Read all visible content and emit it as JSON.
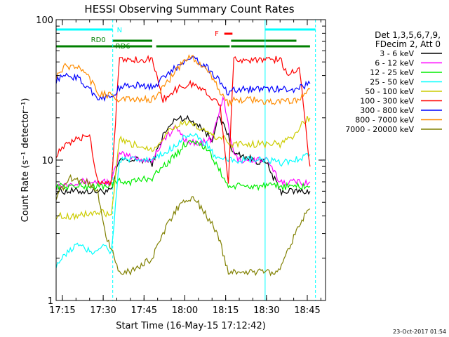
{
  "chart_data": {
    "type": "line",
    "title": "HESSI Observing Summary Count Rates",
    "xlabel": "Start Time (16-May-15 17:12:42)",
    "ylabel": "Count Rate (s⁻¹ detector⁻¹)",
    "yscale": "log",
    "ylim": [
      1,
      100
    ],
    "y_ticks": [
      {
        "value": 1,
        "label": "1"
      },
      {
        "value": 10,
        "label": "10"
      },
      {
        "value": 100,
        "label": "100"
      }
    ],
    "x_axis": {
      "start": "17:12:42",
      "x_ticks": [
        "17:15",
        "17:30",
        "17:45",
        "18:00",
        "18:15",
        "18:30",
        "18:45"
      ]
    },
    "legend": {
      "header": [
        "Det 1,3,5,6,7,9,",
        "FDecim 2, Att 0"
      ],
      "placement": "right",
      "entries": [
        {
          "label": "3 - 6 keV",
          "color": "#000000"
        },
        {
          "label": "6 - 12 keV",
          "color": "#ff00ff"
        },
        {
          "label": "12 - 25 keV",
          "color": "#00ee00"
        },
        {
          "label": "25 - 50 keV",
          "color": "#00ffff"
        },
        {
          "label": "50 - 100 keV",
          "color": "#cccc00"
        },
        {
          "label": "100 - 300 keV",
          "color": "#ff0000"
        },
        {
          "label": "300 - 800 keV",
          "color": "#0000ff"
        },
        {
          "label": "800 - 7000 keV",
          "color": "#ff8c00"
        },
        {
          "label": "7000 - 20000 keV",
          "color": "#808000"
        }
      ]
    },
    "flags": [
      {
        "label": "N",
        "color": "#00ffff"
      },
      {
        "label": "RD0",
        "color": "#008000"
      },
      {
        "label": "RD6",
        "color": "#008000"
      },
      {
        "label": "F",
        "color": "#ff0000"
      }
    ],
    "flag_intervals": {
      "N": [
        [
          "17:12:42",
          "17:33:30"
        ],
        [
          "18:29:30",
          "18:48:00"
        ]
      ],
      "RD0": [
        [
          "17:12:42",
          "17:48:00"
        ],
        [
          "17:49:30",
          "18:16:30"
        ],
        [
          "18:17:00",
          "18:46:00"
        ]
      ],
      "RD6": [
        [
          "17:33:30",
          "17:48:00"
        ],
        [
          "18:17:00",
          "18:41:00"
        ]
      ],
      "F": [
        [
          "18:14:30",
          "18:17:30"
        ]
      ]
    },
    "series": [
      {
        "name": "3 - 6 keV",
        "color": "#000000",
        "x": [
          "17:12:42",
          "17:20:00",
          "17:26:00",
          "17:33:00",
          "17:36:00",
          "17:45:00",
          "17:48:00",
          "17:52:00",
          "17:57:00",
          "18:00:00",
          "18:05:00",
          "18:10:00",
          "18:12:00",
          "18:15:00",
          "18:18:00",
          "18:20:00",
          "18:25:00",
          "18:30:00",
          "18:35:00",
          "18:40:00",
          "18:46:00"
        ],
        "y": [
          6,
          6,
          6,
          6,
          10,
          10,
          9.5,
          15,
          20,
          20,
          18,
          14,
          20,
          17,
          11,
          11,
          10,
          9.5,
          6,
          6,
          6
        ]
      },
      {
        "name": "6 - 12 keV",
        "color": "#ff00ff",
        "x": [
          "17:12:42",
          "17:20:00",
          "17:26:00",
          "17:33:00",
          "17:36:00",
          "17:45:00",
          "17:48:00",
          "17:52:00",
          "17:57:00",
          "18:00:00",
          "18:05:00",
          "18:10:00",
          "18:12:00",
          "18:14:00",
          "18:18:00",
          "18:20:00",
          "18:25:00",
          "18:30:00",
          "18:35:00",
          "18:40:00",
          "18:46:00"
        ],
        "y": [
          6.5,
          7,
          7,
          7,
          11,
          10,
          10,
          14,
          17,
          14,
          13,
          14,
          20,
          28,
          11,
          10,
          10,
          10,
          7,
          7,
          7
        ]
      },
      {
        "name": "12 - 25 keV",
        "color": "#00ee00",
        "x": [
          "17:12:42",
          "17:20:00",
          "17:26:00",
          "17:30:00",
          "17:36:00",
          "17:40:00",
          "17:48:00",
          "17:52:00",
          "17:57:00",
          "18:00:00",
          "18:03:00",
          "18:08:00",
          "18:12:00",
          "18:16:00",
          "18:20:00",
          "18:25:00",
          "18:30:00",
          "18:35:00",
          "18:40:00",
          "18:46:00"
        ],
        "y": [
          6.5,
          6.5,
          6.5,
          6.5,
          7,
          7,
          7.5,
          9,
          11,
          13,
          14,
          12,
          9,
          6.5,
          6.5,
          6.5,
          6.5,
          6.5,
          6.5,
          6.5
        ]
      },
      {
        "name": "25 - 50 keV",
        "color": "#00ffff",
        "x": [
          "17:12:42",
          "17:20:00",
          "17:26:00",
          "17:30:00",
          "17:33:00",
          "17:36:00",
          "17:40:00",
          "17:48:00",
          "17:52:00",
          "17:57:00",
          "18:00:00",
          "18:03:00",
          "18:08:00",
          "18:12:00",
          "18:16:00",
          "18:20:00",
          "18:25:00",
          "18:30:00",
          "18:35:00",
          "18:40:00",
          "18:46:00"
        ],
        "y": [
          1.8,
          2.5,
          2.2,
          2.5,
          2.2,
          10,
          10,
          10,
          11,
          13,
          15,
          15,
          13,
          10,
          10,
          10,
          10,
          10,
          9.5,
          10,
          11
        ]
      },
      {
        "name": "50 - 100 keV",
        "color": "#cccc00",
        "x": [
          "17:12:42",
          "17:20:00",
          "17:26:00",
          "17:30:00",
          "17:33:00",
          "17:36:00",
          "17:40:00",
          "17:44:00",
          "17:48:00",
          "17:50:00",
          "17:55:00",
          "18:00:00",
          "18:05:00",
          "18:10:00",
          "18:15:00",
          "18:17:00",
          "18:20:00",
          "18:25:00",
          "18:30:00",
          "18:35:00",
          "18:40:00",
          "18:44:00",
          "18:46:00"
        ],
        "y": [
          4,
          4,
          4.2,
          4.2,
          4,
          14,
          13,
          12.5,
          12,
          13,
          17,
          18.5,
          17,
          15,
          14,
          13,
          13,
          13,
          13,
          13,
          15,
          19,
          20
        ]
      },
      {
        "name": "100 - 300 keV",
        "color": "#ff0000",
        "x": [
          "17:12:42",
          "17:16:00",
          "17:20:00",
          "17:25:00",
          "17:28:00",
          "17:33:00",
          "17:36:00",
          "17:40:00",
          "17:45:00",
          "17:48:00",
          "17:52:00",
          "17:58:00",
          "18:03:00",
          "18:08:00",
          "18:13:00",
          "18:16:00",
          "18:18:00",
          "18:24:00",
          "18:30:00",
          "18:35:00",
          "18:38:00",
          "18:42:00",
          "18:46:00"
        ],
        "y": [
          11,
          12.5,
          14,
          15,
          7,
          7,
          52,
          52,
          52,
          52,
          27,
          33,
          35,
          30,
          25,
          7,
          52,
          52,
          52,
          52,
          40,
          47,
          9
        ]
      },
      {
        "name": "300 - 800 keV",
        "color": "#0000ff",
        "x": [
          "17:12:42",
          "17:16:00",
          "17:20:00",
          "17:25:00",
          "17:28:00",
          "17:33:00",
          "17:36:00",
          "17:40:00",
          "17:45:00",
          "17:48:00",
          "17:52:00",
          "17:58:00",
          "18:02:00",
          "18:07:00",
          "18:12:00",
          "18:16:00",
          "18:18:00",
          "18:24:00",
          "18:30:00",
          "18:35:00",
          "18:40:00",
          "18:46:00"
        ],
        "y": [
          37,
          40,
          39,
          32,
          28,
          28,
          33,
          34,
          34,
          33,
          38,
          48,
          55,
          48,
          38,
          30,
          32,
          32,
          32,
          32,
          32,
          35
        ]
      },
      {
        "name": "800 - 7000 keV",
        "color": "#ff8c00",
        "x": [
          "17:12:42",
          "17:16:00",
          "17:20:00",
          "17:25:00",
          "17:28:00",
          "17:33:00",
          "17:36:00",
          "17:40:00",
          "17:45:00",
          "17:48:00",
          "17:52:00",
          "17:58:00",
          "18:02:00",
          "18:07:00",
          "18:12:00",
          "18:16:00",
          "18:18:00",
          "18:24:00",
          "18:30:00",
          "18:35:00",
          "18:40:00",
          "18:46:00"
        ],
        "y": [
          40,
          46,
          47,
          38,
          30,
          29,
          27,
          27,
          27,
          27,
          33,
          46,
          55,
          47,
          33,
          25,
          27,
          27,
          26,
          26,
          26,
          32
        ]
      },
      {
        "name": "7000 - 20000 keV",
        "color": "#808000",
        "x": [
          "17:12:42",
          "17:18:00",
          "17:24:00",
          "17:28:00",
          "17:31:00",
          "17:33:00",
          "17:36:00",
          "17:40:00",
          "17:48:00",
          "17:52:00",
          "17:57:00",
          "18:00:00",
          "18:04:00",
          "18:08:00",
          "18:12:00",
          "18:16:00",
          "18:22:00",
          "18:28:00",
          "18:34:00",
          "18:38:00",
          "18:42:00",
          "18:46:00"
        ],
        "y": [
          5.5,
          7.5,
          7,
          6,
          2.8,
          2.3,
          1.6,
          1.6,
          2,
          3,
          4.5,
          5.2,
          5.2,
          4,
          3,
          1.6,
          1.6,
          1.6,
          1.6,
          2.3,
          3.5,
          4.5
        ]
      }
    ]
  },
  "footer": {
    "date_stamp": "23-Oct-2017 01:54"
  }
}
